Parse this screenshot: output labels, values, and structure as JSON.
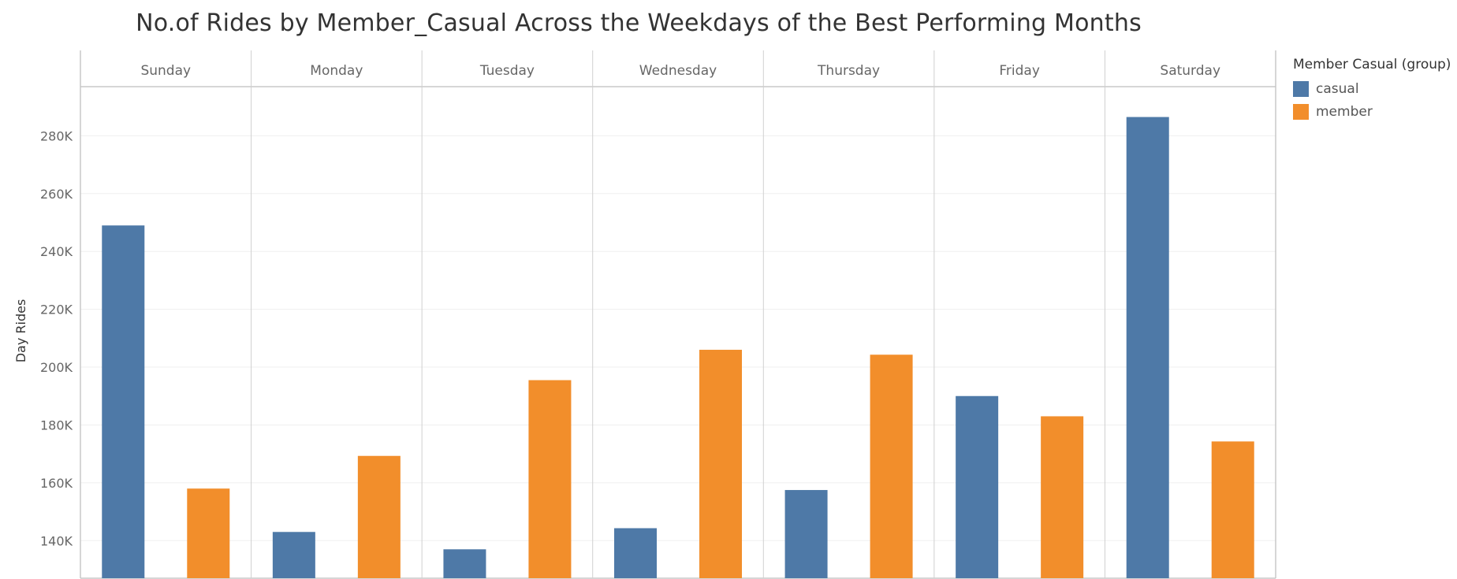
{
  "chart_data": {
    "type": "bar",
    "title": "No.of Rides by Member_Casual Across the Weekdays of the Best Performing Months",
    "xlabel": "",
    "ylabel": "Day Rides",
    "categories": [
      "Sunday",
      "Monday",
      "Tuesday",
      "Wednesday",
      "Thursday",
      "Friday",
      "Saturday"
    ],
    "series": [
      {
        "name": "casual",
        "color": "#4e79a7",
        "values": [
          249000,
          143000,
          137000,
          144300,
          157500,
          190000,
          286500
        ]
      },
      {
        "name": "member",
        "color": "#f28e2b",
        "values": [
          158000,
          169300,
          195500,
          206000,
          204300,
          183000,
          174300
        ]
      }
    ],
    "ylim": [
      127000,
      297000
    ],
    "yticks": [
      140000,
      160000,
      180000,
      200000,
      220000,
      240000,
      260000,
      280000
    ],
    "ytick_labels": [
      "140K",
      "160K",
      "180K",
      "200K",
      "220K",
      "240K",
      "260K",
      "280K"
    ],
    "grid": true,
    "legend": {
      "title": "Member Casual (group)",
      "position": "top-right"
    }
  }
}
